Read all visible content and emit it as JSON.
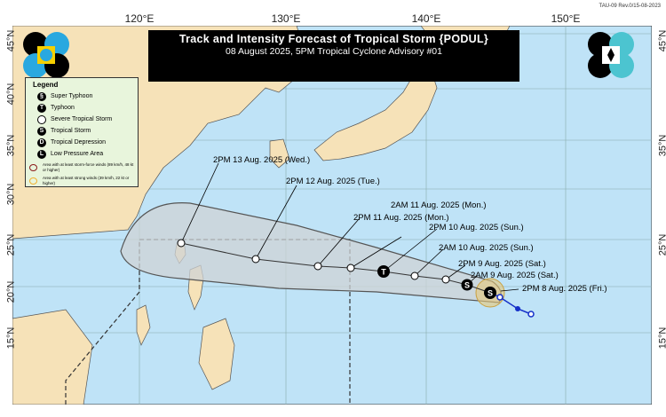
{
  "revision": "TAU-09 Rev.0/15-08-2023",
  "title": "Track and Intensity Forecast of Tropical Storm {PODUL}",
  "subtitle": "08 August 2025, 5PM Tropical Cyclone Advisory #01",
  "lon_labels": [
    "120°E",
    "130°E",
    "140°E",
    "150°E"
  ],
  "lat_labels": [
    "45°N",
    "40°N",
    "35°N",
    "30°N",
    "25°N",
    "20°N",
    "15°N"
  ],
  "legend": {
    "heading": "Legend",
    "items": [
      {
        "symbol": "",
        "label": "Super Typhoon"
      },
      {
        "symbol": "T",
        "label": "Typhoon"
      },
      {
        "symbol": "",
        "label": "Severe Tropical Storm"
      },
      {
        "symbol": "S",
        "label": "Tropical Storm"
      },
      {
        "symbol": "D",
        "label": "Tropical Depression"
      },
      {
        "symbol": "L",
        "label": "Low Pressure Area"
      }
    ],
    "areas": [
      {
        "label": "Area with at least storm-force winds (89 km/h, 48 kt or higher)",
        "color": "#8b1a1a"
      },
      {
        "label": "Area with at least strong winds (39 km/h, 22 kt or higher)",
        "color": "#f0b030"
      }
    ]
  },
  "forecast_labels": [
    "2PM 13 Aug. 2025 (Wed.)",
    "2PM 12 Aug. 2025 (Tue.)",
    "2PM 11 Aug. 2025 (Mon.)",
    "2AM 11 Aug. 2025 (Mon.)",
    "2PM 10 Aug. 2025 (Sun.)",
    "2AM 10 Aug. 2025 (Sun.)",
    "2PM 9 Aug. 2025 (Sat.)",
    "2AM 9 Aug. 2025 (Sat.)",
    "2PM 8 Aug. 2025 (Fri.)"
  ],
  "colors": {
    "sea": "#bfe3f7",
    "land": "#f6e2b8",
    "cone": "#c8c8c8",
    "past_track": "#1530c8"
  }
}
